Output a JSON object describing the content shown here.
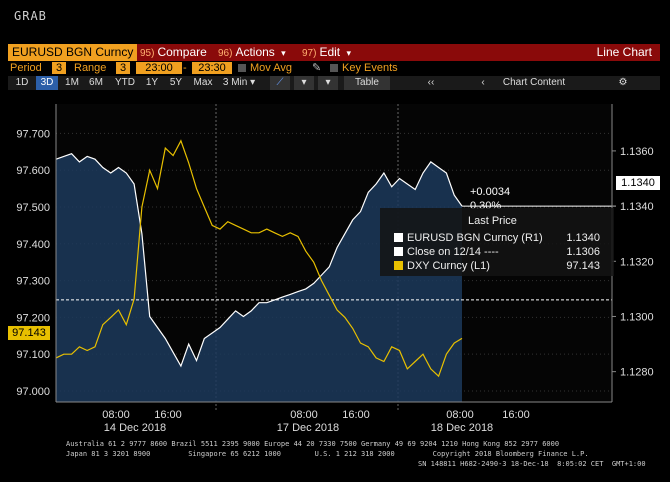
{
  "header": {
    "grab": "GRAB"
  },
  "toolbar": {
    "security": "EURUSD BGN Curncy",
    "compare_num": "95)",
    "compare": "Compare",
    "actions_num": "96)",
    "actions": "Actions",
    "edit_num": "97)",
    "edit": "Edit",
    "dropdown_glyph": "▾",
    "view_name": "Line Chart"
  },
  "options": {
    "period_label": "Period",
    "period_value": "3",
    "range_label": "Range",
    "range_value": "3",
    "start_time": "23:00",
    "range_sep": "-",
    "end_time": "23:30",
    "mov_avg": "Mov Avg",
    "key_events": "Key Events",
    "collapse_glyph": "‹‹"
  },
  "timeframes": [
    "1D",
    "3D",
    "1M",
    "6M",
    "YTD",
    "1Y",
    "5Y",
    "Max"
  ],
  "active_timeframe": "3D",
  "interval": "3 Min",
  "table_label": "Table",
  "chart_content_label": "Chart Content",
  "gear_glyph": "⚙",
  "chart_data": {
    "type": "line",
    "left_axis": {
      "ticks": [
        "97.700",
        "97.600",
        "97.500",
        "97.400",
        "97.300",
        "97.200",
        "97.100",
        "97.000"
      ],
      "values": [
        97.7,
        97.6,
        97.5,
        97.4,
        97.3,
        97.2,
        97.1,
        97.0
      ],
      "range": [
        96.97,
        97.78
      ]
    },
    "right_axis": {
      "ticks": [
        "1.1360",
        "1.1340",
        "1.1320",
        "1.1300",
        "1.1280"
      ],
      "values": [
        1.136,
        1.134,
        1.132,
        1.13,
        1.128
      ],
      "range": [
        1.1269,
        1.1377
      ]
    },
    "x_time_labels": [
      "08:00",
      "16:00",
      "08:00",
      "16:00",
      "08:00",
      "16:00"
    ],
    "x_date_labels": [
      "14 Dec 2018",
      "17 Dec 2018",
      "18 Dec 2018"
    ],
    "last_left_label": "97.143",
    "last_right_label": "1.1340",
    "change_abs": "+0.0034",
    "change_pct": "0.30%",
    "series": [
      {
        "name": "EURUSD BGN Curncy (R1)",
        "axis": "right",
        "color": "#ffffff",
        "values": [
          1.1357,
          1.1358,
          1.1359,
          1.1356,
          1.1358,
          1.1357,
          1.1354,
          1.1352,
          1.1354,
          1.1352,
          1.1348,
          1.133,
          1.13,
          1.1296,
          1.1292,
          1.1287,
          1.1282,
          1.129,
          1.1284,
          1.1292,
          1.1294,
          1.1296,
          1.1299,
          1.1302,
          1.13,
          1.1302,
          1.1305,
          1.1305,
          1.1306,
          1.1307,
          1.1308,
          1.1309,
          1.131,
          1.1312,
          1.1315,
          1.1318,
          1.1325,
          1.133,
          1.1335,
          1.1338,
          1.1345,
          1.1348,
          1.1352,
          1.1347,
          1.135,
          1.1348,
          1.1346,
          1.1352,
          1.1356,
          1.1354,
          1.1352,
          1.1344,
          1.134
        ]
      },
      {
        "name": "Close on 12/14 ----",
        "axis": "right",
        "color": "#ffffff",
        "value": 1.1306
      },
      {
        "name": "DXY Curncy (L1)",
        "axis": "left",
        "color": "#e8c000",
        "values": [
          97.09,
          97.1,
          97.1,
          97.12,
          97.11,
          97.12,
          97.18,
          97.2,
          97.22,
          97.18,
          97.25,
          97.5,
          97.6,
          97.55,
          97.66,
          97.64,
          97.68,
          97.62,
          97.55,
          97.5,
          97.45,
          97.44,
          97.46,
          97.45,
          97.44,
          97.43,
          97.43,
          97.44,
          97.43,
          97.42,
          97.43,
          97.42,
          97.38,
          97.35,
          97.3,
          97.26,
          97.22,
          97.2,
          97.17,
          97.13,
          97.12,
          97.09,
          97.08,
          97.12,
          97.11,
          97.06,
          97.08,
          97.1,
          97.06,
          97.04,
          97.1,
          97.13,
          97.143
        ]
      }
    ]
  },
  "legend": {
    "title": "Last Price",
    "rows": [
      {
        "name": "EURUSD BGN Curncy (R1)",
        "value": "1.1340",
        "color": "#ffffff"
      },
      {
        "name": "Close on 12/14 ----",
        "value": "1.1306",
        "color": "#ffffff"
      },
      {
        "name": "DXY Curncy (L1)",
        "value": "97.143",
        "color": "#e8c000"
      }
    ]
  },
  "footer": {
    "line1": "Australia 61 2 9777 8600 Brazil 5511 2395 9000 Europe 44 20 7330 7500 Germany 49 69 9204 1210 Hong Kong 852 2977 6000",
    "line2": "Japan 81 3 3201 8900         Singapore 65 6212 1000        U.S. 1 212 318 2000         Copyright 2018 Bloomberg Finance L.P.",
    "line3": "SN 148811 H682-2490-3 18-Dec-18  8:05:02 CET  GMT+1:00"
  }
}
